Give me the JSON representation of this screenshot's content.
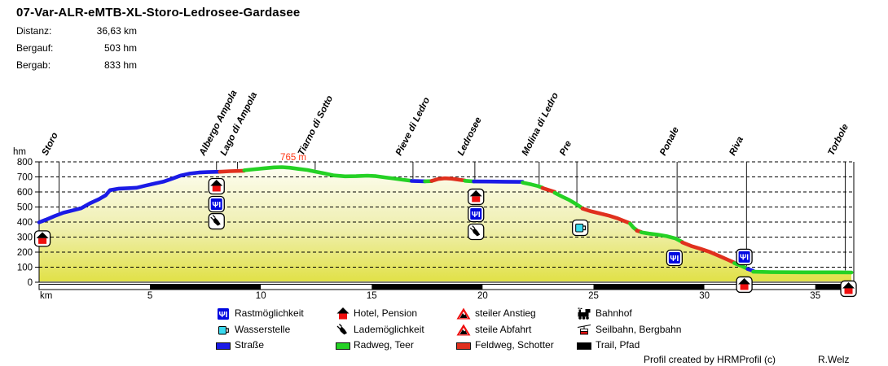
{
  "title": "07-Var-ALR-eMTB-XL-Storo-Ledrosee-Gardasee",
  "stats": [
    {
      "label": "Distanz:",
      "value": "36,63 km"
    },
    {
      "label": "Bergauf:",
      "value": "503 hm"
    },
    {
      "label": "Bergab:",
      "value": "833 hm"
    }
  ],
  "chart_data": {
    "type": "line",
    "xlabel": "km",
    "ylabel": "hm",
    "xlim": [
      0,
      36.63
    ],
    "ylim": [
      0,
      800
    ],
    "xticks": [
      5,
      10,
      15,
      20,
      25,
      30,
      35
    ],
    "yticks": [
      0,
      100,
      200,
      300,
      400,
      500,
      600,
      700,
      800
    ],
    "grid": "horizontal-dashed",
    "peak_annotation": {
      "text": "765 m",
      "km": 10.95,
      "elevation": 765
    },
    "locations": [
      {
        "name": "Storo",
        "km": 0.9
      },
      {
        "name": "Albergo Ampola",
        "km": 8.0
      },
      {
        "name": "Lago di Ampola",
        "km": 8.95
      },
      {
        "name": "Tiarno di Sotto",
        "km": 12.45
      },
      {
        "name": "Pieve di Ledro",
        "km": 16.86
      },
      {
        "name": "Ledrosee",
        "km": 19.65
      },
      {
        "name": "Molina di Ledro",
        "km": 22.55
      },
      {
        "name": "Pre",
        "km": 24.25
      },
      {
        "name": "Ponale",
        "km": 28.77
      },
      {
        "name": "Riva",
        "km": 31.9
      },
      {
        "name": "Torbole",
        "km": 36.35
      }
    ],
    "surfaces": {
      "road": "Straße",
      "cycleway": "Radweg, Teer",
      "gravel": "Feldweg, Schotter",
      "trail": "Trail, Pfad"
    },
    "segments": [
      {
        "surface": "road",
        "points": [
          [
            0,
            398
          ],
          [
            0.3,
            415
          ],
          [
            0.7,
            440
          ],
          [
            1.1,
            462
          ],
          [
            1.5,
            477
          ],
          [
            1.9,
            492
          ],
          [
            2.3,
            525
          ],
          [
            2.7,
            552
          ],
          [
            3.0,
            578
          ],
          [
            3.2,
            612
          ],
          [
            3.6,
            622
          ],
          [
            4.0,
            625
          ],
          [
            4.4,
            628
          ],
          [
            4.8,
            642
          ],
          [
            5.2,
            655
          ],
          [
            5.6,
            668
          ],
          [
            6.0,
            688
          ],
          [
            6.4,
            710
          ],
          [
            6.8,
            722
          ],
          [
            7.2,
            729
          ],
          [
            7.6,
            732
          ],
          [
            8.15,
            734
          ]
        ]
      },
      {
        "surface": "gravel",
        "points": [
          [
            8.15,
            734
          ],
          [
            8.6,
            738
          ],
          [
            9.25,
            741
          ]
        ]
      },
      {
        "surface": "cycleway",
        "points": [
          [
            9.25,
            744
          ],
          [
            9.7,
            751
          ],
          [
            10.2,
            758
          ],
          [
            10.6,
            763
          ],
          [
            10.95,
            765
          ],
          [
            11.3,
            761
          ],
          [
            11.7,
            753
          ],
          [
            12.1,
            746
          ],
          [
            12.45,
            735
          ],
          [
            12.9,
            722
          ],
          [
            13.3,
            710
          ],
          [
            13.8,
            704
          ],
          [
            14.3,
            705
          ],
          [
            14.8,
            708
          ],
          [
            15.2,
            705
          ],
          [
            15.6,
            697
          ],
          [
            16.0,
            689
          ],
          [
            16.4,
            681
          ],
          [
            16.8,
            674
          ]
        ]
      },
      {
        "surface": "road",
        "points": [
          [
            16.8,
            673
          ],
          [
            17.1,
            672
          ],
          [
            17.4,
            671
          ]
        ]
      },
      {
        "surface": "cycleway",
        "points": [
          [
            17.4,
            671
          ],
          [
            17.7,
            672
          ]
        ]
      },
      {
        "surface": "gravel",
        "points": [
          [
            17.7,
            673
          ],
          [
            18.0,
            686
          ],
          [
            18.3,
            691
          ],
          [
            18.6,
            688
          ],
          [
            19.0,
            680
          ],
          [
            19.2,
            676
          ]
        ]
      },
      {
        "surface": "cycleway",
        "points": [
          [
            19.2,
            674
          ],
          [
            19.6,
            670
          ]
        ]
      },
      {
        "surface": "road",
        "points": [
          [
            19.6,
            670
          ],
          [
            20.3,
            669
          ],
          [
            21.0,
            668
          ],
          [
            21.8,
            667
          ]
        ]
      },
      {
        "surface": "cycleway",
        "points": [
          [
            21.8,
            662
          ],
          [
            22.2,
            650
          ],
          [
            22.5,
            639
          ],
          [
            22.7,
            628
          ]
        ]
      },
      {
        "surface": "gravel",
        "points": [
          [
            22.7,
            626
          ],
          [
            23.0,
            612
          ],
          [
            23.25,
            600
          ]
        ]
      },
      {
        "surface": "cycleway",
        "points": [
          [
            23.25,
            594
          ],
          [
            23.6,
            568
          ],
          [
            23.9,
            547
          ],
          [
            24.2,
            521
          ],
          [
            24.5,
            492
          ]
        ]
      },
      {
        "surface": "gravel",
        "points": [
          [
            24.5,
            490
          ],
          [
            24.9,
            471
          ],
          [
            25.3,
            457
          ],
          [
            25.7,
            442
          ],
          [
            26.1,
            424
          ],
          [
            26.4,
            406
          ],
          [
            26.65,
            392
          ]
        ]
      },
      {
        "surface": "cycleway",
        "points": [
          [
            26.65,
            390
          ],
          [
            26.8,
            363
          ],
          [
            26.95,
            346
          ]
        ]
      },
      {
        "surface": "gravel",
        "points": [
          [
            26.95,
            343
          ],
          [
            27.15,
            334
          ]
        ]
      },
      {
        "surface": "cycleway",
        "points": [
          [
            27.15,
            332
          ],
          [
            27.5,
            323
          ],
          [
            27.9,
            316
          ],
          [
            28.3,
            306
          ],
          [
            28.7,
            291
          ],
          [
            29.0,
            268
          ]
        ]
      },
      {
        "surface": "gravel",
        "points": [
          [
            29.0,
            265
          ],
          [
            29.4,
            241
          ],
          [
            29.8,
            223
          ],
          [
            30.2,
            204
          ],
          [
            30.6,
            179
          ],
          [
            31.0,
            153
          ],
          [
            31.35,
            130
          ]
        ]
      },
      {
        "surface": "cycleway",
        "points": [
          [
            31.35,
            127
          ],
          [
            31.7,
            106
          ],
          [
            31.95,
            89
          ]
        ]
      },
      {
        "surface": "road",
        "points": [
          [
            31.95,
            88
          ],
          [
            32.2,
            76
          ]
        ]
      },
      {
        "surface": "cycleway",
        "points": [
          [
            32.2,
            70
          ],
          [
            33.0,
            67
          ],
          [
            34.5,
            66
          ],
          [
            36.0,
            66
          ],
          [
            36.63,
            65
          ]
        ]
      }
    ],
    "route_icons": [
      {
        "type": "hotel",
        "km": 0.15,
        "elevation": 290
      },
      {
        "type": "hotel",
        "km": 8.0,
        "elevation": 638
      },
      {
        "type": "restaurant",
        "km": 8.0,
        "elevation": 519
      },
      {
        "type": "charger",
        "km": 8.0,
        "elevation": 405
      },
      {
        "type": "hotel",
        "km": 19.7,
        "elevation": 568
      },
      {
        "type": "restaurant",
        "km": 19.7,
        "elevation": 454
      },
      {
        "type": "charger",
        "km": 19.7,
        "elevation": 335
      },
      {
        "type": "water",
        "km": 24.4,
        "elevation": 362
      },
      {
        "type": "restaurant",
        "km": 28.65,
        "elevation": 162
      },
      {
        "type": "restaurant",
        "km": 31.8,
        "elevation": 168
      },
      {
        "type": "hotel",
        "km": 31.8,
        "elevation": -16
      },
      {
        "type": "hotel",
        "km": 36.5,
        "elevation": -43
      }
    ]
  },
  "legend": {
    "rows": [
      [
        {
          "icon": "restaurant",
          "label": "Rastmöglichkeit"
        },
        {
          "icon": "hotel",
          "label": "Hotel, Pension"
        },
        {
          "icon": "steep-up",
          "label": "steiler Anstieg"
        },
        {
          "icon": "bahnhof",
          "label": "Bahnhof"
        }
      ],
      [
        {
          "icon": "water",
          "label": "Wasserstelle"
        },
        {
          "icon": "charger",
          "label": "Lademöglichkeit"
        },
        {
          "icon": "steep-down",
          "label": "steile Abfahrt"
        },
        {
          "icon": "seilbahn",
          "label": "Seilbahn, Bergbahn"
        }
      ],
      [
        {
          "swatch": "road",
          "label": "Straße"
        },
        {
          "swatch": "cycleway",
          "label": "Radweg, Teer"
        },
        {
          "swatch": "gravel",
          "label": "Feldweg, Schotter"
        },
        {
          "swatch": "trail",
          "label": "Trail, Pfad"
        }
      ]
    ]
  },
  "colors": {
    "road": "#1b1be6",
    "cycleway": "#25d125",
    "gravel": "#e0301e",
    "trail": "#000000",
    "peak_label": "#ff3614",
    "hotel_red": "#ee0f0f",
    "restaurant_blue": "#0008e0",
    "water_cyan": "#3ad9ee",
    "fill_top": "#fefef6",
    "fill_mid": "#efefaf",
    "fill_bottom": "#e1e146"
  },
  "credit": {
    "left": "Profil created by HRMProfil (c)",
    "right": "R.Welz"
  }
}
